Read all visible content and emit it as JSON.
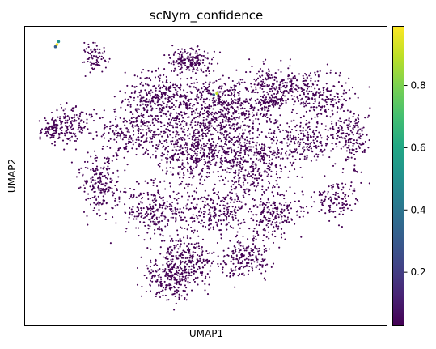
{
  "chart_data": {
    "type": "scatter",
    "title": "scNym_confidence",
    "xlabel": "UMAP1",
    "ylabel": "UMAP2",
    "x_ticks": "none",
    "y_ticks": "none",
    "grid": false,
    "colormap": "viridis",
    "color_value_range": [
      0.03,
      0.99
    ],
    "colorbar": {
      "ticks": [
        {
          "value": 0.2,
          "label": "0.2"
        },
        {
          "value": 0.4,
          "label": "0.4"
        },
        {
          "value": 0.6,
          "label": "0.6"
        },
        {
          "value": 0.8,
          "label": "0.8"
        }
      ]
    },
    "point_color": "#440154",
    "notable_points": [
      {
        "x": 1.05,
        "y": 15.25,
        "value": 0.95
      },
      {
        "x": 1.15,
        "y": 15.45,
        "value": 0.55
      },
      {
        "x": 0.95,
        "y": 15.1,
        "value": 0.35
      },
      {
        "x": 11.2,
        "y": 11.9,
        "value": 0.9
      },
      {
        "x": 11.0,
        "y": 11.8,
        "value": 0.3
      }
    ]
  }
}
